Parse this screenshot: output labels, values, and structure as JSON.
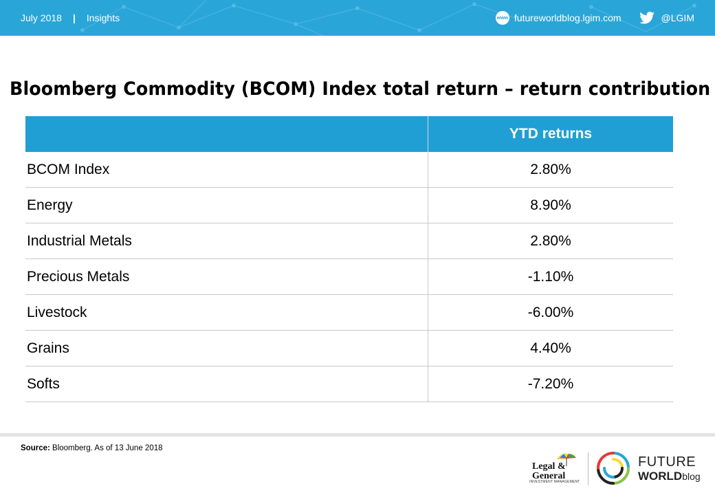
{
  "header": {
    "date": "July 2018",
    "separator": "|",
    "section": "Insights",
    "www_icon_text": "www",
    "website": "futureworldblog.lgim.com",
    "twitter_handle": "@LGIM"
  },
  "title": "Bloomberg Commodity (BCOM) Index total return – return contribution",
  "table": {
    "headers": [
      "",
      "YTD returns"
    ],
    "rows": [
      {
        "label": "BCOM Index",
        "value": "2.80%"
      },
      {
        "label": "Energy",
        "value": "8.90%"
      },
      {
        "label": "Industrial Metals",
        "value": "2.80%"
      },
      {
        "label": "Precious Metals",
        "value": "-1.10%"
      },
      {
        "label": "Livestock",
        "value": "-6.00%"
      },
      {
        "label": "Grains",
        "value": "4.40%"
      },
      {
        "label": "Softs",
        "value": "-7.20%"
      }
    ]
  },
  "footer": {
    "source_label": "Source:",
    "source_text": " Bloomberg. As of 13 June 2018",
    "lg_logo_line1": "Legal &",
    "lg_logo_line2": "General",
    "lg_logo_sub": "INVESTMENT MANAGEMENT",
    "fw_line1": "FUTURE",
    "fw_line2": "WORLD",
    "fw_line3": "blog"
  },
  "colors": {
    "header_bar": "#2aa5d8",
    "table_header": "#1f9fd3"
  },
  "icons": [
    "www-icon",
    "twitter-icon",
    "umbrella-icon",
    "future-world-icon"
  ]
}
